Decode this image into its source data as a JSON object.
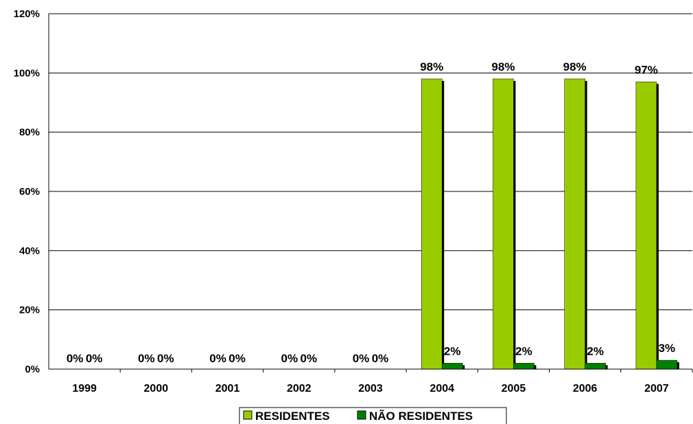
{
  "chart_data": {
    "type": "bar",
    "categories": [
      "1999",
      "2000",
      "2001",
      "2002",
      "2003",
      "2004",
      "2005",
      "2006",
      "2007"
    ],
    "series": [
      {
        "name": "RESIDENTES",
        "color": "#99cc00",
        "values": [
          0,
          0,
          0,
          0,
          0,
          98,
          98,
          98,
          97
        ],
        "labels": [
          "0%",
          "0%",
          "0%",
          "0%",
          "0%",
          "98%",
          "98%",
          "98%",
          "97%"
        ]
      },
      {
        "name": "NÃO RESIDENTES",
        "color": "#008000",
        "values": [
          0,
          0,
          0,
          0,
          0,
          2,
          2,
          2,
          3
        ],
        "labels": [
          "0%",
          "0%",
          "0%",
          "0%",
          "0%",
          "2%",
          "2%",
          "2%",
          "3%"
        ]
      }
    ],
    "y_ticks": [
      "0%",
      "20%",
      "40%",
      "60%",
      "80%",
      "100%",
      "120%"
    ],
    "ylim": [
      0,
      120
    ],
    "grid": true,
    "legend_position": "bottom-center",
    "title": "",
    "xlabel": "",
    "ylabel": ""
  }
}
